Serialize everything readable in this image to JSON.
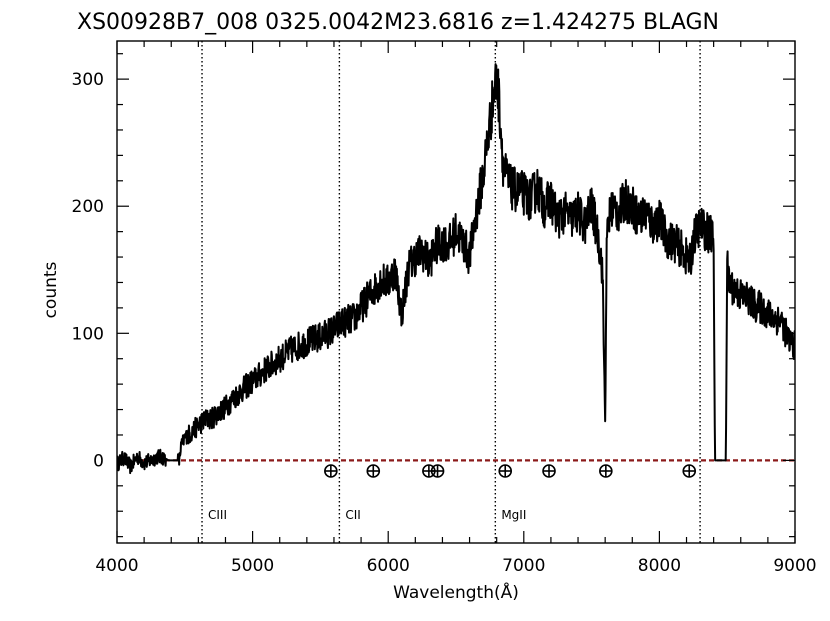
{
  "chart_data": {
    "type": "line",
    "title": "XS00928B7_008  0325.0042M23.6816  z=1.424275     BLAGN",
    "xlabel": "Wavelength(Å)",
    "ylabel": "counts",
    "xlim": [
      4000,
      9000
    ],
    "ylim": [
      -65,
      330
    ],
    "x_ticks": [
      4000,
      5000,
      6000,
      7000,
      8000,
      9000
    ],
    "y_ticks": [
      0,
      100,
      200,
      300
    ],
    "x_tick_labels": [
      "4000",
      "5000",
      "6000",
      "7000",
      "8000",
      "9000"
    ],
    "y_tick_labels": [
      "0",
      "100",
      "200",
      "300"
    ],
    "series": [
      {
        "name": "",
        "color": "#000000",
        "x": [
          4000,
          4050,
          4100,
          4150,
          4200,
          4250,
          4300,
          4350,
          4380,
          4440,
          4460,
          4470,
          4500,
          4550,
          4600,
          4650,
          4700,
          4750,
          4800,
          4850,
          4900,
          4950,
          5000,
          5100,
          5200,
          5300,
          5400,
          5500,
          5600,
          5650,
          5700,
          5750,
          5800,
          5850,
          5900,
          5950,
          6000,
          6050,
          6100,
          6150,
          6200,
          6250,
          6300,
          6350,
          6400,
          6450,
          6500,
          6550,
          6600,
          6650,
          6700,
          6750,
          6780,
          6800,
          6820,
          6850,
          6900,
          6950,
          7000,
          7050,
          7100,
          7150,
          7200,
          7250,
          7300,
          7350,
          7400,
          7450,
          7500,
          7550,
          7580,
          7600,
          7610,
          7620,
          7650,
          7700,
          7750,
          7800,
          7850,
          7900,
          7950,
          8000,
          8050,
          8100,
          8150,
          8200,
          8230,
          8250,
          8300,
          8350,
          8400,
          8410,
          8420,
          8490,
          8500,
          8510,
          8550,
          8600,
          8650,
          8700,
          8750,
          8800,
          8850,
          8900,
          8950,
          8980,
          9000
        ],
        "values": [
          -3,
          2,
          -5,
          3,
          -2,
          0,
          3,
          2,
          0,
          0,
          0,
          10,
          18,
          22,
          28,
          32,
          33,
          38,
          42,
          48,
          53,
          58,
          62,
          72,
          80,
          88,
          93,
          97,
          103,
          108,
          110,
          112,
          120,
          128,
          135,
          142,
          140,
          150,
          115,
          152,
          160,
          165,
          155,
          168,
          172,
          170,
          180,
          172,
          160,
          195,
          225,
          265,
          290,
          300,
          280,
          230,
          215,
          212,
          210,
          205,
          215,
          200,
          205,
          190,
          195,
          190,
          195,
          185,
          200,
          175,
          150,
          30,
          160,
          185,
          200,
          195,
          205,
          200,
          190,
          195,
          185,
          190,
          175,
          172,
          168,
          160,
          155,
          175,
          185,
          180,
          175,
          0,
          0,
          0,
          155,
          140,
          135,
          130,
          128,
          122,
          120,
          115,
          112,
          110,
          95,
          92,
          90
        ]
      }
    ],
    "zero_line": {
      "y": 0,
      "color": "#8b1a1a",
      "style": "dashed"
    },
    "vertical_lines": [
      {
        "x": 4627,
        "label": "CIII"
      },
      {
        "x": 5640,
        "label": "CII"
      },
      {
        "x": 6790,
        "label": "MgII"
      },
      {
        "x": 8300,
        "label": ""
      }
    ],
    "telluric_markers": [
      5577,
      5890,
      6300,
      6364,
      6863,
      7186,
      7605,
      8220
    ]
  }
}
